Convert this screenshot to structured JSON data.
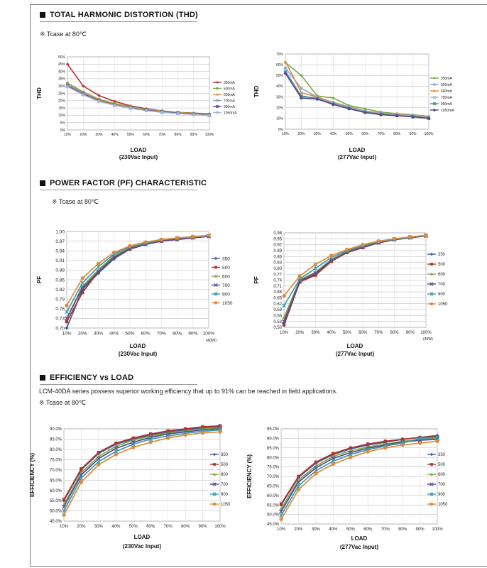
{
  "sections": {
    "thd": {
      "title": "TOTAL HARMONIC DISTORTION (THD)",
      "note": "※ Tcase at 80℃"
    },
    "pf": {
      "title": "POWER FACTOR (PF) CHARACTERISTIC",
      "note": "※ Tcase at 80℃"
    },
    "eff": {
      "title": "EFFICIENCY vs LOAD",
      "desc": "LCM-40DA series possess superior working efficiency that up to 91% can be reached in field applications.",
      "note": "※ Tcase at 80℃"
    }
  },
  "chart_data": [
    {
      "id": "thd-230",
      "type": "line",
      "title": "",
      "ylabel": "THD",
      "xlabel": "LOAD",
      "xlabel2": "(230Vac Input)",
      "categories": [
        "10%",
        "20%",
        "30%",
        "40%",
        "50%",
        "60%",
        "70%",
        "80%",
        "90%",
        "100%"
      ],
      "ylim": [
        0,
        50
      ],
      "yticks": [
        "0%",
        "5%",
        "10%",
        "15%",
        "20%",
        "25%",
        "30%",
        "35%",
        "40%",
        "45%",
        "50%"
      ],
      "grid": true,
      "legend_position": "right",
      "series": [
        {
          "name": "350mA",
          "color": "#b03030",
          "values": [
            45,
            30,
            23.5,
            19.5,
            16.5,
            14.5,
            13,
            12,
            11.5,
            11
          ]
        },
        {
          "name": "500mA",
          "color": "#7da848",
          "values": [
            32,
            26,
            21,
            18,
            16,
            14,
            13,
            12,
            11.2,
            10.8
          ]
        },
        {
          "name": "600mA",
          "color": "#e08a3a",
          "values": [
            31,
            25.5,
            20.5,
            17.5,
            15.5,
            13.8,
            12.7,
            11.8,
            11,
            10.5
          ]
        },
        {
          "name": "700mA",
          "color": "#8aa6cc",
          "values": [
            30.5,
            25,
            20,
            17,
            15.2,
            13.5,
            12.5,
            11.6,
            10.8,
            10.2
          ]
        },
        {
          "name": "900mA",
          "color": "#5b4a8a",
          "values": [
            30,
            24.5,
            20,
            17,
            15,
            13.5,
            12.3,
            11.5,
            10.7,
            10
          ]
        },
        {
          "name": "1050mA",
          "color": "#9fb9d8",
          "values": [
            29.5,
            24,
            19.5,
            16.8,
            14.8,
            13.2,
            12,
            11.2,
            10.5,
            9.8
          ]
        }
      ]
    },
    {
      "id": "thd-277",
      "type": "line",
      "title": "",
      "ylabel": "THD",
      "xlabel": "LOAD",
      "xlabel2": "(277Vac Input)",
      "categories": [
        "10%",
        "20%",
        "30%",
        "40%",
        "50%",
        "60%",
        "70%",
        "80%",
        "90%",
        "100%"
      ],
      "ylim": [
        0,
        70
      ],
      "yticks": [
        "0%",
        "10%",
        "20%",
        "30%",
        "40%",
        "50%",
        "60%",
        "70%"
      ],
      "grid": true,
      "legend_position": "right",
      "series": [
        {
          "name": "350mA",
          "color": "#7da848",
          "values": [
            62,
            50,
            31,
            29,
            22,
            19,
            16,
            14.5,
            13.5,
            12
          ]
        },
        {
          "name": "500mA",
          "color": "#8aa6cc",
          "values": [
            57,
            38,
            30,
            25,
            21,
            17,
            15,
            14,
            13,
            11.5
          ]
        },
        {
          "name": "600mA",
          "color": "#e08a3a",
          "values": [
            63,
            34,
            30,
            25,
            20.5,
            17,
            14.5,
            13.5,
            12.5,
            11
          ]
        },
        {
          "name": "700mA",
          "color": "#9fb9d8",
          "values": [
            55,
            30,
            29,
            24,
            20,
            16.5,
            14,
            13,
            12,
            10.5
          ]
        },
        {
          "name": "900mA",
          "color": "#3e8ea0",
          "values": [
            53,
            31,
            28.5,
            23.5,
            19.5,
            16,
            14,
            12.8,
            11.8,
            10.3
          ]
        },
        {
          "name": "1050mA",
          "color": "#5b4a8a",
          "values": [
            52,
            29,
            28,
            23,
            19,
            15.5,
            13.5,
            12.5,
            11.5,
            10
          ]
        }
      ]
    },
    {
      "id": "pf-230",
      "type": "line",
      "title": "",
      "ylabel": "PF",
      "xlabel": "LOAD",
      "xlabel2": "(230Vac Input)",
      "extra_label": "(40W)",
      "categories": [
        "10%",
        "20%",
        "30%",
        "40%",
        "50%",
        "60%",
        "70%",
        "80%",
        "90%",
        "100%"
      ],
      "ylim": [
        0.7,
        1.0
      ],
      "yticks": [
        "0.70",
        "0.73",
        "0.76",
        "0.79",
        "0.82",
        "0.85",
        "0.88",
        "0.91",
        "0.94",
        "0.97",
        "1.00"
      ],
      "grid": true,
      "legend_position": "right",
      "series": [
        {
          "name": "350",
          "color": "#3b5f9a",
          "values": [
            0.7,
            0.82,
            0.87,
            0.915,
            0.945,
            0.96,
            0.97,
            0.975,
            0.98,
            0.985
          ]
        },
        {
          "name": "500",
          "color": "#b03030",
          "values": [
            0.72,
            0.81,
            0.875,
            0.92,
            0.945,
            0.96,
            0.97,
            0.975,
            0.98,
            0.985
          ]
        },
        {
          "name": "600",
          "color": "#7da848",
          "values": [
            0.73,
            0.83,
            0.88,
            0.925,
            0.95,
            0.962,
            0.972,
            0.977,
            0.982,
            0.986
          ]
        },
        {
          "name": "700",
          "color": "#5b4a8a",
          "values": [
            0.73,
            0.825,
            0.875,
            0.92,
            0.947,
            0.96,
            0.97,
            0.976,
            0.981,
            0.985
          ]
        },
        {
          "name": "900",
          "color": "#3e9cb0",
          "values": [
            0.75,
            0.84,
            0.89,
            0.93,
            0.952,
            0.965,
            0.974,
            0.979,
            0.983,
            0.987
          ]
        },
        {
          "name": "1050",
          "color": "#e08a3a",
          "values": [
            0.77,
            0.855,
            0.9,
            0.935,
            0.955,
            0.967,
            0.975,
            0.98,
            0.984,
            0.988
          ]
        }
      ]
    },
    {
      "id": "pf-277",
      "type": "line",
      "title": "",
      "ylabel": "PF",
      "xlabel": "LOAD",
      "xlabel2": "(277Vac Input)",
      "extra_label": "(40W)",
      "categories": [
        "10%",
        "20%",
        "30%",
        "40%",
        "50%",
        "60%",
        "70%",
        "80%",
        "90%",
        "100%"
      ],
      "ylim": [
        0.5,
        0.98
      ],
      "yticks": [
        "0.50",
        "0.53",
        "0.56",
        "0.59",
        "0.62",
        "0.65",
        "0.68",
        "0.71",
        "0.74",
        "0.77",
        "0.80",
        "0.83",
        "0.86",
        "0.89",
        "0.92",
        "0.95",
        "0.98"
      ],
      "grid": true,
      "legend_position": "right",
      "series": [
        {
          "name": "350",
          "color": "#3b5f9a",
          "values": [
            0.51,
            0.73,
            0.77,
            0.84,
            0.88,
            0.91,
            0.93,
            0.945,
            0.955,
            0.965
          ]
        },
        {
          "name": "500",
          "color": "#b03030",
          "values": [
            0.52,
            0.73,
            0.765,
            0.835,
            0.88,
            0.905,
            0.93,
            0.945,
            0.955,
            0.965
          ]
        },
        {
          "name": "600",
          "color": "#7da848",
          "values": [
            0.55,
            0.74,
            0.78,
            0.845,
            0.885,
            0.91,
            0.932,
            0.947,
            0.957,
            0.966
          ]
        },
        {
          "name": "700",
          "color": "#5b4a8a",
          "values": [
            0.53,
            0.735,
            0.775,
            0.84,
            0.882,
            0.908,
            0.93,
            0.946,
            0.956,
            0.965
          ]
        },
        {
          "name": "900",
          "color": "#3e9cb0",
          "values": [
            0.61,
            0.745,
            0.8,
            0.855,
            0.89,
            0.915,
            0.935,
            0.948,
            0.958,
            0.967
          ]
        },
        {
          "name": "1050",
          "color": "#e08a3a",
          "values": [
            0.66,
            0.76,
            0.82,
            0.865,
            0.895,
            0.92,
            0.938,
            0.95,
            0.96,
            0.968
          ]
        }
      ]
    },
    {
      "id": "eff-230",
      "type": "line",
      "title": "",
      "ylabel": "EFFICIENCY (%)",
      "xlabel": "LOAD",
      "xlabel2": "(230Vac Input)",
      "categories": [
        "10%",
        "20%",
        "30%",
        "40%",
        "50%",
        "60%",
        "70%",
        "80%",
        "90%",
        "100%"
      ],
      "ylim": [
        45,
        90
      ],
      "yticks": [
        "45.0%",
        "50.0%",
        "55.0%",
        "60.0%",
        "65.0%",
        "70.0%",
        "75.0%",
        "80.0%",
        "85.0%",
        "90.0%"
      ],
      "grid": true,
      "legend_position": "right",
      "series": [
        {
          "name": "350",
          "color": "#3b5f9a",
          "values": [
            55,
            70,
            78,
            82.5,
            85,
            87,
            88.5,
            89.5,
            90.5,
            91
          ]
        },
        {
          "name": "500",
          "color": "#b03030",
          "values": [
            55.5,
            70.5,
            78.5,
            83,
            85.5,
            87.5,
            89,
            90,
            91,
            91.5
          ]
        },
        {
          "name": "600",
          "color": "#7da848",
          "values": [
            53,
            68.5,
            76.5,
            81.5,
            84.5,
            86.5,
            88,
            89,
            90,
            90.5
          ]
        },
        {
          "name": "700",
          "color": "#5b4a8a",
          "values": [
            52,
            67.5,
            75.5,
            80.5,
            83.5,
            85.8,
            87.5,
            88.5,
            89.5,
            90
          ]
        },
        {
          "name": "900",
          "color": "#3e9cb0",
          "values": [
            50,
            66,
            74,
            79,
            82.5,
            85,
            86.5,
            87.8,
            88.8,
            89.5
          ]
        },
        {
          "name": "1050",
          "color": "#e08a3a",
          "values": [
            48,
            64,
            72.5,
            77.5,
            81,
            83.5,
            85.5,
            87,
            88,
            88.5
          ]
        }
      ]
    },
    {
      "id": "eff-277",
      "type": "line",
      "title": "",
      "ylabel": "EFFICIENCY (%)",
      "xlabel": "LOAD",
      "xlabel2": "(277Vac Input)",
      "categories": [
        "10%",
        "20%",
        "30%",
        "40%",
        "50%",
        "60%",
        "70%",
        "80%",
        "90%",
        "100%"
      ],
      "ylim": [
        45,
        95
      ],
      "yticks": [
        "45.0%",
        "50.0%",
        "55.0%",
        "60.0%",
        "65.0%",
        "70.0%",
        "75.0%",
        "80.0%",
        "85.0%",
        "90.0%",
        "95.0%"
      ],
      "grid": true,
      "legend_position": "right",
      "series": [
        {
          "name": "350",
          "color": "#3b5f9a",
          "values": [
            55,
            69.5,
            77,
            81.5,
            84.5,
            86.5,
            88,
            89.5,
            90.5,
            91.5
          ]
        },
        {
          "name": "500",
          "color": "#b03030",
          "values": [
            55.5,
            70,
            77.5,
            82,
            85,
            87,
            88.5,
            89.5,
            90.5,
            91
          ]
        },
        {
          "name": "600",
          "color": "#7da848",
          "values": [
            53,
            68,
            75.5,
            80.5,
            83.5,
            85.5,
            87,
            88.5,
            89.5,
            90
          ]
        },
        {
          "name": "700",
          "color": "#5b4a8a",
          "values": [
            51.5,
            67,
            74.5,
            79.5,
            82.5,
            84.8,
            86.5,
            88,
            89,
            89.5
          ]
        },
        {
          "name": "900",
          "color": "#3e9cb0",
          "values": [
            49.5,
            65,
            73,
            78,
            81.5,
            84,
            86,
            87.5,
            90,
            90.5
          ]
        },
        {
          "name": "1050",
          "color": "#e08a3a",
          "values": [
            47.5,
            63,
            71.5,
            76.5,
            80,
            83,
            85,
            86.5,
            87.5,
            88.5
          ]
        }
      ]
    }
  ]
}
